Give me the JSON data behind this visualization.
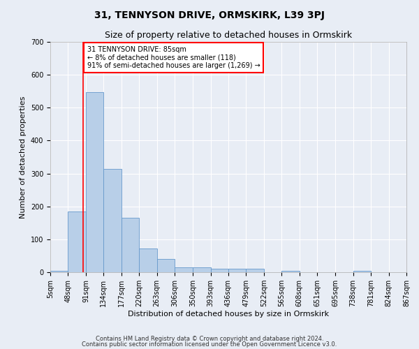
{
  "title": "31, TENNYSON DRIVE, ORMSKIRK, L39 3PJ",
  "subtitle": "Size of property relative to detached houses in Ormskirk",
  "xlabel": "Distribution of detached houses by size in Ormskirk",
  "ylabel": "Number of detached properties",
  "bin_edges": [
    5,
    48,
    91,
    134,
    177,
    220,
    263,
    306,
    350,
    393,
    436,
    479,
    522,
    565,
    608,
    651,
    695,
    738,
    781,
    824,
    867
  ],
  "bar_heights": [
    5,
    185,
    548,
    315,
    165,
    73,
    40,
    15,
    15,
    10,
    10,
    10,
    0,
    5,
    0,
    0,
    0,
    5,
    0,
    0
  ],
  "bar_color": "#b8cfe8",
  "bar_edge_color": "#6699cc",
  "property_line_x": 85,
  "annotation_text": "31 TENNYSON DRIVE: 85sqm\n← 8% of detached houses are smaller (118)\n91% of semi-detached houses are larger (1,269) →",
  "annotation_box_color": "white",
  "annotation_border_color": "red",
  "vline_color": "red",
  "ylim": [
    0,
    700
  ],
  "yticks": [
    0,
    100,
    200,
    300,
    400,
    500,
    600,
    700
  ],
  "footnote1": "Contains HM Land Registry data © Crown copyright and database right 2024.",
  "footnote2": "Contains public sector information licensed under the Open Government Licence v3.0.",
  "background_color": "#e8edf5",
  "plot_bg_color": "#e8edf5",
  "grid_color": "white",
  "title_fontsize": 10,
  "subtitle_fontsize": 9,
  "axis_label_fontsize": 8,
  "tick_fontsize": 7,
  "annotation_fontsize": 7,
  "footnote_fontsize": 6
}
